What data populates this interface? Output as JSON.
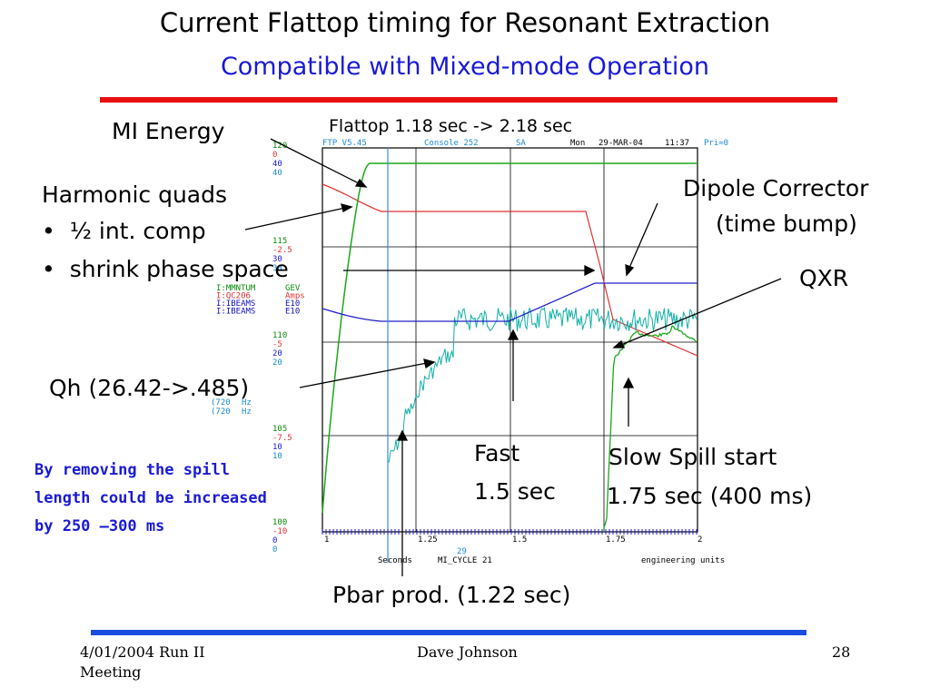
{
  "slide": {
    "title": "Current Flattop timing for Resonant Extraction",
    "subtitle": "Compatible with Mixed-mode Operation",
    "annotations": {
      "mi_energy": "MI Energy",
      "flattop": "Flattop 1.18 sec -> 2.18 sec",
      "harmonic_quads": "Harmonic quads",
      "bullet1": "½ int. comp",
      "bullet2": "shrink phase space",
      "bullet_glyph": "•",
      "dipole1": "Dipole Corrector",
      "dipole2": "(time bump)",
      "qxr": "QXR",
      "qh": "Qh (26.42->.485)",
      "fast1": "Fast",
      "fast2": "1.5 sec",
      "slow1": "Slow Spill start",
      "slow2": "1.75 sec (400 ms)",
      "pbar": "Pbar prod. (1.22 sec)"
    },
    "blue_note": [
      "By removing the  spill",
      "length could be increased",
      "by 250 –300 ms"
    ],
    "footer": {
      "date_line1": "4/01/2004   Run II",
      "date_line2": "Meeting",
      "author": "Dave Johnson",
      "page": "28"
    }
  },
  "scope": {
    "header": {
      "prog": "FTP V5.45",
      "console": "Console 252",
      "sa": "SA",
      "day": "Mon",
      "date": "29-MAR-04",
      "time": "11:37",
      "pri": "Pri=0"
    },
    "axis_groups": [
      [
        "120",
        "0",
        "40",
        "40"
      ],
      [
        "115",
        "-2.5",
        "30",
        "30"
      ],
      [
        "110",
        "-5",
        "20",
        "20"
      ],
      [
        "105",
        "-7.5",
        "10",
        "10"
      ],
      [
        "100",
        "-10",
        "0",
        "0"
      ]
    ],
    "channels": [
      {
        "name": "I:MMNTUM",
        "units": "GEV",
        "color": "#0b8a0b"
      },
      {
        "name": "I:QC206",
        "units": "Amps",
        "color": "#e03030"
      },
      {
        "name": "I:IBEAMS",
        "units": "E10",
        "color": "#1010c0"
      },
      {
        "name": "I:IBEAMS",
        "units": "E10",
        "color": "#1010c0"
      }
    ],
    "hz_rows": [
      {
        "value": "(720",
        "unit": "Hz"
      },
      {
        "value": "(720",
        "unit": "Hz"
      }
    ],
    "x_ticks": [
      "1",
      "1.25",
      "1.5",
      "1.75",
      "2"
    ],
    "x_footer": {
      "units": "Seconds",
      "cycle_label": "MI_CYCLE",
      "cycle_value": "21",
      "event": "29",
      "right": "engineering units"
    },
    "colors": {
      "momentum": "#1aa81a",
      "quad": "#e03030",
      "intensity": "#2020c8",
      "spill": "#0fb0a8",
      "marker": "#3a8ae0",
      "grid": "#000000"
    }
  }
}
